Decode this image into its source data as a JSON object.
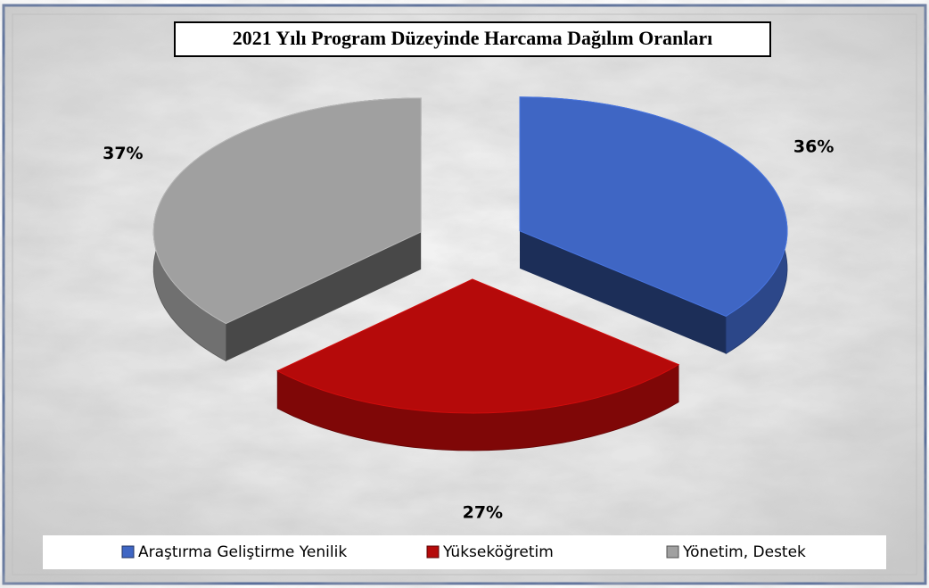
{
  "chart_data": {
    "type": "pie",
    "title": "2021 Yılı Program Düzeyinde Harcama Dağılım Oranları",
    "categories": [
      "Araştırma Geliştirme Yenilik",
      "Yükseköğretim",
      "Yönetim, Destek"
    ],
    "values": [
      36,
      27,
      37
    ],
    "value_labels": [
      "36%",
      "27%",
      "37%"
    ],
    "colors": [
      "#3f66c4",
      "#b50a0a",
      "#a0a0a0"
    ],
    "legend": "bottom"
  }
}
